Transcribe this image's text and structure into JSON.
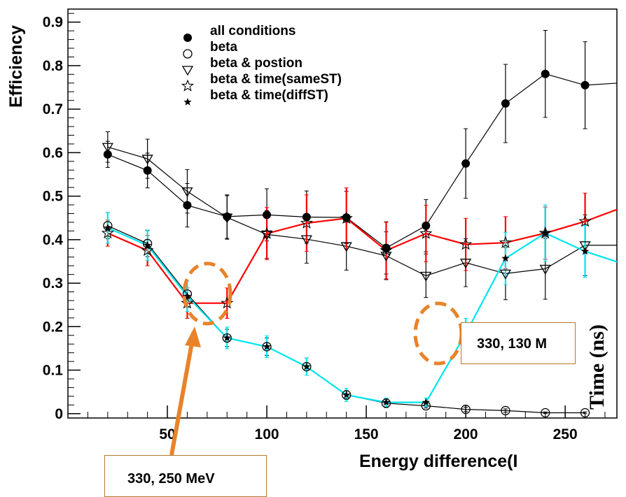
{
  "chart_data": {
    "type": "scatter",
    "xlabel": "Energy difference(I",
    "ylabel": "Efficiency",
    "xlim": [
      0,
      276
    ],
    "ylim": [
      -0.01,
      0.93
    ],
    "x_ticks": [
      "50",
      "100",
      "150",
      "200",
      "250"
    ],
    "y_ticks": [
      "0",
      "0.1",
      "0.2",
      "0.3",
      "0.4",
      "0.5",
      "0.6",
      "0.7",
      "0.8",
      "0.9"
    ],
    "legend_position": "top-center",
    "series": [
      {
        "name": "all conditions",
        "marker": "filled-circle",
        "color": "#000000",
        "x": [
          20,
          40,
          60,
          80,
          100,
          120,
          140,
          160,
          180,
          200,
          220,
          240,
          260,
          280
        ],
        "y": [
          0.596,
          0.559,
          0.479,
          0.453,
          0.457,
          0.452,
          0.451,
          0.381,
          0.432,
          0.575,
          0.713,
          0.781,
          0.755,
          0.761
        ],
        "err": [
          0.03,
          0.04,
          0.05,
          0.05,
          0.06,
          0.06,
          0.06,
          0.06,
          0.06,
          0.08,
          0.09,
          0.1,
          0.1,
          0.11
        ]
      },
      {
        "name": "beta & postion",
        "marker": "open-triangle",
        "color": "#000000",
        "x": [
          20,
          40,
          60,
          80,
          100,
          120,
          140,
          160,
          180,
          200,
          220,
          240,
          260,
          280
        ],
        "y": [
          0.613,
          0.586,
          0.511,
          0.451,
          0.412,
          0.401,
          0.385,
          0.363,
          0.317,
          0.347,
          0.322,
          0.333,
          0.387,
          0.387
        ],
        "err": [
          0.035,
          0.045,
          0.05,
          0.05,
          0.055,
          0.055,
          0.055,
          0.055,
          0.05,
          0.055,
          0.06,
          0.07,
          0.07,
          0.08
        ]
      },
      {
        "name": "beta & time(sameST)",
        "marker": "open-star",
        "color": "#ff0000",
        "x": [
          20,
          40,
          60,
          80,
          100,
          120,
          140,
          160,
          180,
          200,
          220,
          240,
          260,
          280
        ],
        "y": [
          0.415,
          0.375,
          0.254,
          0.254,
          0.414,
          0.438,
          0.449,
          0.375,
          0.414,
          0.389,
          0.393,
          0.415,
          0.442,
          0.476
        ],
        "err": [
          0.03,
          0.035,
          0.035,
          0.035,
          0.06,
          0.065,
          0.07,
          0.065,
          0.065,
          0.06,
          0.06,
          0.06,
          0.065,
          0.075
        ]
      },
      {
        "name": "beta",
        "marker": "open-circle",
        "color": "#000000",
        "x": [
          20,
          40,
          60,
          80,
          100,
          120,
          140,
          160,
          180,
          200,
          220,
          240,
          260
        ],
        "y": [
          0.432,
          0.391,
          0.275,
          0.174,
          0.154,
          0.108,
          0.043,
          0.024,
          0.018,
          0.01,
          0.007,
          0.002,
          0.002
        ],
        "err": [
          0.03,
          0.03,
          0.03,
          0.02,
          0.02,
          0.02,
          0.01,
          0.01,
          0.005,
          0.005,
          0.004,
          0.002,
          0.002
        ]
      },
      {
        "name": "beta & time(diffST)",
        "marker": "filled-star",
        "color": "#00e5ee",
        "x": [
          20,
          40,
          60,
          80,
          100,
          120,
          140,
          160,
          180,
          200,
          220,
          240,
          260,
          280
        ],
        "y": [
          0.427,
          0.387,
          0.27,
          0.174,
          0.154,
          0.108,
          0.043,
          0.026,
          0.026,
          0.184,
          0.357,
          0.415,
          0.373,
          0.343
        ],
        "err": [
          0.035,
          0.035,
          0.035,
          0.025,
          0.025,
          0.02,
          0.015,
          0.01,
          0.01,
          0.035,
          0.06,
          0.065,
          0.06,
          0.06
        ]
      }
    ],
    "legend": [
      {
        "label": "all conditions",
        "marker": "filled-circle"
      },
      {
        "label": "beta",
        "marker": "open-circle"
      },
      {
        "label": "beta & postion",
        "marker": "open-triangle"
      },
      {
        "label": "beta & time(sameST)",
        "marker": "open-star"
      },
      {
        "label": "beta & time(diffST)",
        "marker": "filled-star"
      }
    ],
    "annotations": [
      {
        "text": "330, 250 MeV",
        "points_to": {
          "x": 77,
          "y": 0.24
        }
      },
      {
        "text": "330, 130 M",
        "points_to": {
          "x": 200,
          "y": 0.185
        }
      }
    ],
    "overlay_text": "Time (ns)"
  },
  "colors": {
    "highlight_ring": "#e8832a",
    "arrow": "#e8832a",
    "callout_border": "#b07a2c"
  }
}
